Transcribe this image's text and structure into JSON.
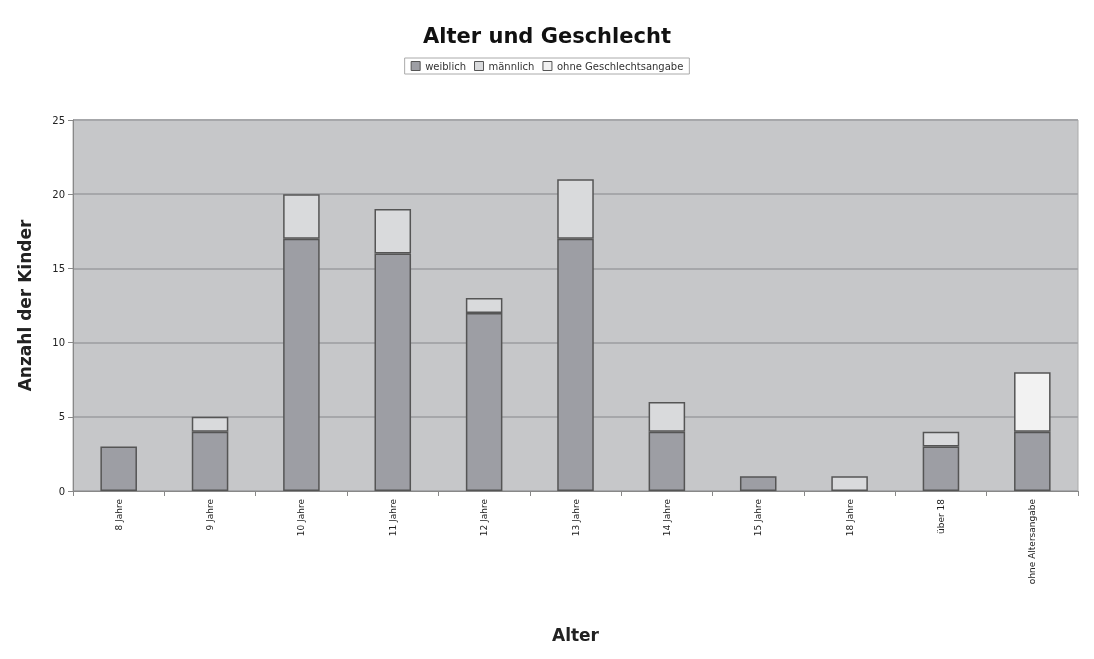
{
  "chart_data": {
    "type": "bar",
    "title": "Alter und Geschlecht",
    "xlabel": "Alter",
    "ylabel": "Anzahl der Kinder",
    "categories": [
      "8 Jahre",
      "9 Jahre",
      "10 Jahre",
      "11 Jahre",
      "12 Jahre",
      "13 Jahre",
      "14 Jahre",
      "15 Jahre",
      "18 Jahre",
      "über 18",
      "ohne Altersangabe"
    ],
    "stacked": true,
    "legend": "top",
    "grid": "y",
    "ylim": [
      0,
      25
    ],
    "yticks": [
      0,
      5,
      10,
      15,
      20,
      25
    ],
    "series": [
      {
        "name": "weiblich",
        "color": "#9d9ea4",
        "values": [
          3,
          4,
          17,
          16,
          12,
          17,
          4,
          1,
          null,
          3,
          4
        ]
      },
      {
        "name": "männlich",
        "color": "#d9dadc",
        "values": [
          null,
          1,
          3,
          3,
          1,
          4,
          2,
          null,
          1,
          1,
          null
        ]
      },
      {
        "name": "ohne Geschlechtsangabe",
        "color": "#f2f2f2",
        "values": [
          null,
          null,
          null,
          null,
          null,
          null,
          null,
          null,
          null,
          null,
          4
        ]
      }
    ]
  }
}
